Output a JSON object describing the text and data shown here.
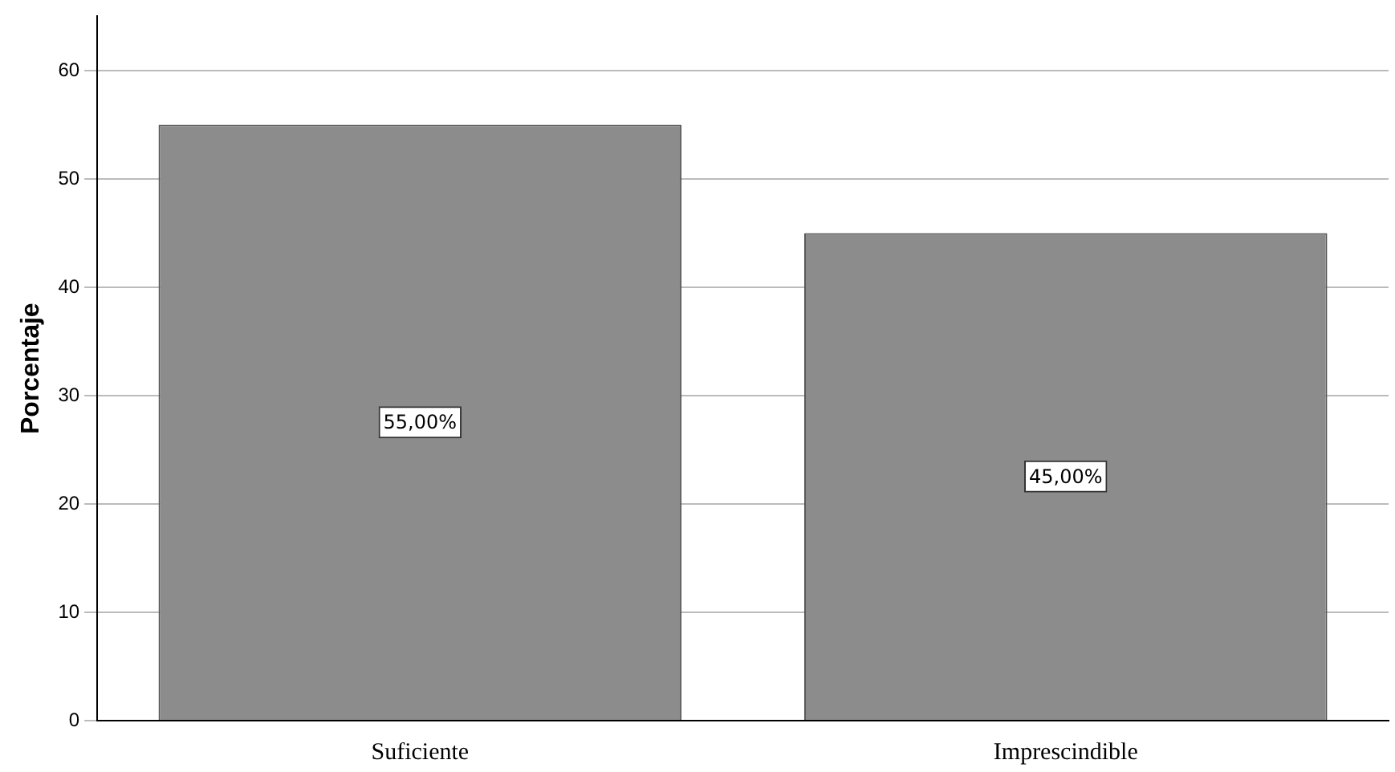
{
  "chart_data": {
    "type": "bar",
    "ylabel": "Porcentaje",
    "categories": [
      "Suficiente",
      "Imprescindible"
    ],
    "values": [
      55,
      45
    ],
    "color": "#8c8c8c",
    "value_labels": [
      "55,00%",
      "45,00%"
    ],
    "ylim": [
      0,
      65
    ],
    "yticks": [
      0,
      10,
      20,
      30,
      40,
      50,
      60
    ],
    "grid": "y",
    "legend": false
  }
}
